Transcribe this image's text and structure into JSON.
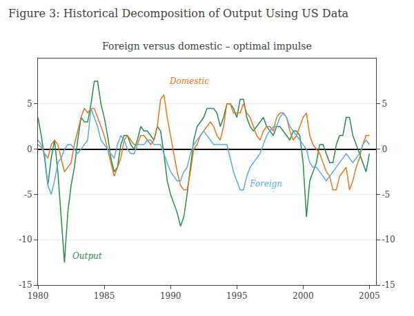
{
  "chart_data": {
    "type": "line",
    "title": "Figure 3: Historical Decomposition of Output Using US Data",
    "subtitle": "Foreign versus domestic – optimal impulse",
    "xlim": [
      1980,
      2005.5
    ],
    "xticks": [
      1980,
      1985,
      1990,
      1995,
      2000,
      2005
    ],
    "ylim": [
      -15,
      10
    ],
    "yticks": [
      -15,
      -10,
      -5,
      0,
      5
    ],
    "y2lim": [
      -15,
      10
    ],
    "y2ticks": [
      -15,
      -10,
      -5,
      0,
      5
    ],
    "grid": true,
    "x": [
      1980.0,
      1980.25,
      1980.5,
      1980.75,
      1981.0,
      1981.25,
      1981.5,
      1981.75,
      1982.0,
      1982.25,
      1982.5,
      1982.75,
      1983.0,
      1983.25,
      1983.5,
      1983.75,
      1984.0,
      1984.25,
      1984.5,
      1984.75,
      1985.0,
      1985.25,
      1985.5,
      1985.75,
      1986.0,
      1986.25,
      1986.5,
      1986.75,
      1987.0,
      1987.25,
      1987.5,
      1987.75,
      1988.0,
      1988.25,
      1988.5,
      1988.75,
      1989.0,
      1989.25,
      1989.5,
      1989.75,
      1990.0,
      1990.25,
      1990.5,
      1990.75,
      1991.0,
      1991.25,
      1991.5,
      1991.75,
      1992.0,
      1992.25,
      1992.5,
      1992.75,
      1993.0,
      1993.25,
      1993.5,
      1993.75,
      1994.0,
      1994.25,
      1994.5,
      1994.75,
      1995.0,
      1995.25,
      1995.5,
      1995.75,
      1996.0,
      1996.25,
      1996.5,
      1996.75,
      1997.0,
      1997.25,
      1997.5,
      1997.75,
      1998.0,
      1998.25,
      1998.5,
      1998.75,
      1999.0,
      1999.25,
      1999.5,
      1999.75,
      2000.0,
      2000.25,
      2000.5,
      2000.75,
      2001.0,
      2001.25,
      2001.5,
      2001.75,
      2002.0,
      2002.25,
      2002.5,
      2002.75,
      2003.0,
      2003.25,
      2003.5,
      2003.75,
      2004.0,
      2004.25,
      2004.5,
      2004.75,
      2005.0
    ],
    "series": [
      {
        "name": "Output",
        "color": "#2a8a50",
        "values": [
          3.5,
          1.5,
          -1.0,
          -4.0,
          -1.0,
          1.0,
          -2.5,
          -7.5,
          -12.5,
          -7.0,
          -4.0,
          -2.0,
          1.0,
          3.5,
          3.0,
          3.0,
          5.0,
          7.5,
          7.5,
          5.0,
          3.5,
          1.5,
          -1.0,
          -2.5,
          -2.0,
          0.5,
          1.5,
          1.5,
          0.5,
          0.0,
          1.0,
          2.5,
          2.0,
          2.0,
          1.5,
          1.0,
          2.5,
          2.0,
          -0.5,
          -3.5,
          -5.0,
          -6.0,
          -7.0,
          -8.5,
          -7.5,
          -5.0,
          -2.0,
          1.0,
          2.5,
          3.0,
          3.5,
          4.5,
          4.5,
          4.5,
          4.0,
          2.5,
          3.5,
          5.0,
          5.0,
          4.5,
          3.5,
          5.5,
          5.5,
          3.5,
          2.5,
          2.0,
          2.5,
          3.0,
          3.5,
          2.5,
          2.0,
          1.5,
          2.5,
          2.5,
          2.0,
          1.5,
          1.0,
          2.0,
          2.0,
          1.5,
          -1.5,
          -7.5,
          -3.5,
          -2.5,
          -1.5,
          0.5,
          0.5,
          -0.5,
          -1.5,
          -1.5,
          0.5,
          1.5,
          1.5,
          3.5,
          3.5,
          1.5,
          0.5,
          -0.5,
          -1.5,
          -2.5,
          -0.5
        ]
      },
      {
        "name": "Domestic",
        "color": "#e07820",
        "values": [
          0.5,
          0.2,
          -0.5,
          -1.0,
          0.5,
          1.0,
          0.5,
          -1.0,
          -2.5,
          -2.0,
          -1.5,
          0.5,
          2.0,
          3.5,
          4.5,
          4.0,
          4.5,
          4.5,
          3.5,
          2.5,
          1.5,
          0.0,
          -1.5,
          -3.0,
          -2.0,
          -1.0,
          1.0,
          1.5,
          1.0,
          0.5,
          0.5,
          1.5,
          1.5,
          1.0,
          0.5,
          1.0,
          2.5,
          5.5,
          6.0,
          3.5,
          1.5,
          -0.5,
          -2.5,
          -4.0,
          -4.5,
          -4.5,
          -2.5,
          0.0,
          0.5,
          1.5,
          2.0,
          2.5,
          3.0,
          2.5,
          1.5,
          1.0,
          2.5,
          5.0,
          5.0,
          4.0,
          4.0,
          4.0,
          5.0,
          4.0,
          3.5,
          2.5,
          1.5,
          1.0,
          2.0,
          2.5,
          2.5,
          2.0,
          3.5,
          4.0,
          4.0,
          3.5,
          2.0,
          1.0,
          1.5,
          2.5,
          3.5,
          4.0,
          1.5,
          0.5,
          0.0,
          -0.5,
          -1.5,
          -2.5,
          -3.0,
          -4.5,
          -4.5,
          -3.0,
          -2.5,
          -2.0,
          -4.5,
          -3.5,
          -2.0,
          -1.0,
          0.5,
          1.5,
          1.5
        ]
      },
      {
        "name": "Foreign",
        "color": "#5aaae0",
        "values": [
          1.0,
          0.5,
          -0.5,
          -4.0,
          -5.0,
          -3.5,
          -1.5,
          -1.0,
          0.0,
          0.5,
          0.5,
          0.0,
          -0.5,
          0.0,
          0.5,
          1.0,
          4.5,
          3.5,
          2.5,
          1.0,
          0.5,
          0.0,
          -0.5,
          -1.0,
          0.5,
          1.5,
          1.0,
          0.0,
          -0.5,
          -0.5,
          0.5,
          0.5,
          0.5,
          1.0,
          1.0,
          0.5,
          0.5,
          0.5,
          -0.5,
          -1.5,
          -2.5,
          -3.0,
          -3.5,
          -3.5,
          -2.5,
          -2.0,
          -0.5,
          0.5,
          1.0,
          1.5,
          2.0,
          1.5,
          1.0,
          0.5,
          0.5,
          0.5,
          0.5,
          0.5,
          -1.0,
          -2.5,
          -3.5,
          -4.5,
          -4.5,
          -3.0,
          -2.0,
          -1.5,
          -1.0,
          -0.5,
          0.5,
          1.5,
          2.0,
          2.5,
          2.5,
          3.5,
          4.0,
          3.5,
          2.5,
          2.0,
          1.5,
          1.0,
          0.5,
          0.0,
          -1.5,
          -2.0,
          -2.0,
          -2.5,
          -3.0,
          -3.5,
          -3.0,
          -2.5,
          -2.0,
          -1.5,
          -1.0,
          -0.5,
          -1.0,
          -1.5,
          -1.0,
          -0.5,
          0.5,
          1.0,
          0.5
        ]
      }
    ],
    "annotations": [
      {
        "text": "Output",
        "x": 1982.5,
        "y": -12.5,
        "color": "#2a8a50"
      },
      {
        "text": "Domestic",
        "x": 1989.8,
        "y": 6.8,
        "color": "#e07820"
      },
      {
        "text": "Foreign",
        "x": 1995.8,
        "y": -4.5,
        "color": "#5aaae0"
      }
    ]
  }
}
